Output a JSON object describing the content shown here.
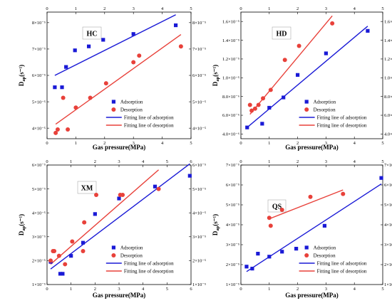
{
  "figure": {
    "background": "#ffffff"
  },
  "colors": {
    "adsorption": "#1a1ad6",
    "desorption": "#e8413a"
  },
  "chart_data": [
    {
      "type": "scatter",
      "title": "HC",
      "xlabel": "Gas pressure(MPa)",
      "ylabel_main": "D",
      "ylabel_sub": "ap",
      "ylabel_unit": "(s⁻¹)",
      "xlim": [
        0,
        5
      ],
      "xticks": [
        "0",
        "1",
        "2",
        "3",
        "4",
        "5"
      ],
      "ylim": [
        3.6,
        8.4
      ],
      "yticks": [
        4,
        5,
        6,
        7,
        8
      ],
      "ytick_labels": [
        "4×10⁻⁵",
        "5×10⁻⁵",
        "6×10⁻⁵",
        "7×10⁻⁵",
        "8×10⁻⁵"
      ],
      "grid": false,
      "legend_position": "bottom-right",
      "series": [
        {
          "name": "Adsorption",
          "kind": "points",
          "marker": "square",
          "color": "#1a1ad6",
          "x": [
            0.27,
            0.52,
            0.66,
            0.97,
            1.45,
            1.95,
            3.0,
            4.47
          ],
          "y": [
            5.55,
            5.55,
            6.32,
            6.95,
            7.1,
            7.35,
            7.57,
            7.9
          ]
        },
        {
          "name": "Desorption",
          "kind": "points",
          "marker": "circle",
          "color": "#e8413a",
          "x": [
            0.3,
            0.37,
            0.56,
            0.72,
            1.0,
            1.5,
            2.05,
            3.0,
            3.2,
            4.65
          ],
          "y": [
            3.82,
            3.95,
            5.15,
            3.95,
            4.78,
            5.15,
            5.7,
            6.5,
            6.75,
            7.1
          ]
        },
        {
          "name": "Fitting line of adsorption",
          "kind": "line",
          "color": "#1a1ad6",
          "x": [
            0.27,
            4.47
          ],
          "y": [
            6.0,
            8.3
          ]
        },
        {
          "name": "Fitting line of desorption",
          "kind": "line",
          "color": "#e8413a",
          "x": [
            0.3,
            4.65
          ],
          "y": [
            4.15,
            7.55
          ]
        }
      ]
    },
    {
      "type": "scatter",
      "title": "HD",
      "xlabel": "Gas pressure(MPa)",
      "ylabel_main": "D",
      "ylabel_sub": "ap",
      "ylabel_unit": "(s⁻¹)",
      "xlim": [
        0,
        5
      ],
      "xticks": [
        "0",
        "1",
        "2",
        "3",
        "4",
        "5"
      ],
      "ylim": [
        3.5,
        17.0
      ],
      "yticks": [
        4,
        6,
        8,
        10,
        12,
        14,
        16
      ],
      "ytick_labels": [
        "4.0×10⁻⁶",
        "6.0×10⁻⁶",
        "8.0×10⁻⁶",
        "1.0×10⁻⁵",
        "1.2×10⁻⁵",
        "1.4×10⁻⁵",
        "1.6×10⁻⁵"
      ],
      "grid": false,
      "legend_position": "bottom-right",
      "series": [
        {
          "name": "Adsorption",
          "kind": "points",
          "marker": "square",
          "color": "#1a1ad6",
          "x": [
            0.22,
            0.75,
            1.0,
            1.5,
            2.0,
            3.0,
            4.47
          ],
          "y": [
            4.7,
            5.1,
            6.8,
            7.9,
            10.3,
            12.6,
            15.0
          ]
        },
        {
          "name": "Desorption",
          "kind": "points",
          "marker": "circle",
          "color": "#e8413a",
          "x": [
            0.32,
            0.38,
            0.5,
            0.62,
            0.78,
            1.05,
            1.55,
            2.05,
            3.22
          ],
          "y": [
            7.1,
            6.5,
            6.7,
            7.1,
            7.8,
            8.7,
            11.9,
            13.4,
            15.8
          ]
        },
        {
          "name": "Fitting line of adsorption",
          "kind": "line",
          "color": "#1a1ad6",
          "x": [
            0.22,
            4.47
          ],
          "y": [
            4.7,
            15.5
          ]
        },
        {
          "name": "Fitting line of desorption",
          "kind": "line",
          "color": "#e8413a",
          "x": [
            0.32,
            3.22
          ],
          "y": [
            6.1,
            16.6
          ]
        }
      ]
    },
    {
      "type": "scatter",
      "title": "XM",
      "xlabel": "Gas pressure(MPa)",
      "ylabel_main": "D",
      "ylabel_sub": "ap",
      "ylabel_unit": "(s⁻¹)",
      "xlim": [
        0,
        6
      ],
      "xticks": [
        "0",
        "1",
        "2",
        "3",
        "4",
        "5",
        "6"
      ],
      "ylim": [
        1,
        6
      ],
      "yticks": [
        1,
        2,
        3,
        4,
        5,
        6
      ],
      "ytick_labels": [
        "1×10⁻⁵",
        "2×10⁻⁵",
        "3×10⁻⁵",
        "4×10⁻⁵",
        "5×10⁻⁵",
        "6×10⁻⁵"
      ],
      "grid": false,
      "legend_position": "bottom-right",
      "series": [
        {
          "name": "Adsorption",
          "kind": "points",
          "marker": "square",
          "color": "#1a1ad6",
          "x": [
            0.15,
            0.55,
            0.65,
            1.0,
            1.5,
            2.0,
            3.0,
            4.5,
            5.95
          ],
          "y": [
            1.95,
            1.45,
            1.45,
            2.2,
            2.75,
            3.95,
            4.6,
            5.1,
            5.55
          ]
        },
        {
          "name": "Desorption",
          "kind": "points",
          "marker": "circle",
          "color": "#e8413a",
          "x": [
            0.15,
            0.25,
            0.3,
            0.5,
            0.75,
            1.05,
            1.5,
            1.55,
            2.05,
            3.05,
            3.15,
            4.65
          ],
          "y": [
            2.0,
            2.4,
            2.4,
            2.2,
            1.85,
            2.8,
            2.4,
            3.6,
            4.75,
            4.75,
            4.75,
            5.0
          ]
        },
        {
          "name": "Fitting line of adsorption",
          "kind": "line",
          "color": "#1a1ad6",
          "x": [
            0.15,
            5.95
          ],
          "y": [
            1.65,
            6.05
          ]
        },
        {
          "name": "Fitting line of desorption",
          "kind": "line",
          "color": "#e8413a",
          "x": [
            0.15,
            4.65
          ],
          "y": [
            1.85,
            5.8
          ]
        }
      ]
    },
    {
      "type": "scatter",
      "title": "QS",
      "xlabel": "Gas pressure(MPa)",
      "ylabel_main": "D",
      "ylabel_sub": "ap",
      "ylabel_unit": "(s⁻¹)",
      "xlim": [
        0,
        5
      ],
      "xticks": [
        "0",
        "1",
        "2",
        "3",
        "4",
        "5"
      ],
      "ylim": [
        1,
        7
      ],
      "yticks": [
        1,
        2,
        3,
        4,
        5,
        6,
        7
      ],
      "ytick_labels": [
        "1×10⁻⁵",
        "2×10⁻⁵",
        "3×10⁻⁵",
        "4×10⁻⁵",
        "5×10⁻⁵",
        "6×10⁻⁵",
        "7×10⁻⁵"
      ],
      "grid": false,
      "legend_position": "bottom-right",
      "series": [
        {
          "name": "Adsorption",
          "kind": "points",
          "marker": "square",
          "color": "#1a1ad6",
          "x": [
            0.2,
            0.4,
            0.6,
            1.0,
            1.45,
            1.95,
            2.95,
            4.95
          ],
          "y": [
            1.9,
            1.8,
            2.55,
            2.4,
            2.65,
            2.8,
            3.95,
            6.35
          ]
        },
        {
          "name": "Desorption",
          "kind": "points",
          "marker": "circle",
          "color": "#e8413a",
          "x": [
            1.0,
            1.05,
            1.45,
            2.45,
            3.6
          ],
          "y": [
            4.35,
            3.95,
            4.75,
            5.4,
            5.55
          ]
        },
        {
          "name": "Fitting line of adsorption",
          "kind": "line",
          "color": "#1a1ad6",
          "x": [
            0.2,
            4.95
          ],
          "y": [
            1.65,
            6.05
          ]
        },
        {
          "name": "Fitting line of desorption",
          "kind": "line",
          "color": "#e8413a",
          "x": [
            1.0,
            3.6
          ],
          "y": [
            4.3,
            5.75
          ]
        }
      ]
    }
  ]
}
